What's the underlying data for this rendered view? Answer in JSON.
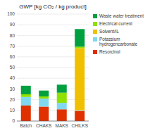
{
  "chart_data": {
    "type": "bar",
    "stacked": true,
    "title": "GWP [kg CO₂ / kg product]",
    "categories": [
      "Batch",
      "CHAKS",
      "MAKS",
      "CHILKS"
    ],
    "series": [
      {
        "name": "Resorcinol",
        "color": "#e03000",
        "values": [
          14.5,
          13.5,
          11.0,
          9.5
        ]
      },
      {
        "name": "Potassium\nhydrogencarbonate",
        "color": "#80d8f0",
        "values": [
          8.0,
          7.5,
          6.0,
          0.5
        ]
      },
      {
        "name": "Solvent/IL",
        "color": "#f0c000",
        "values": [
          0.0,
          0.0,
          0.0,
          58.0
        ]
      },
      {
        "name": "Electrical current",
        "color": "#90e000",
        "values": [
          2.5,
          2.0,
          9.5,
          1.5
        ]
      },
      {
        "name": "Waste water treatment",
        "color": "#00a040",
        "values": [
          8.0,
          5.5,
          7.5,
          16.5
        ]
      }
    ],
    "ylim": [
      0,
      100
    ],
    "yticks": [
      0,
      10,
      20,
      30,
      40,
      50,
      60,
      70,
      80,
      90,
      100
    ],
    "grid": true,
    "legend": "right"
  }
}
